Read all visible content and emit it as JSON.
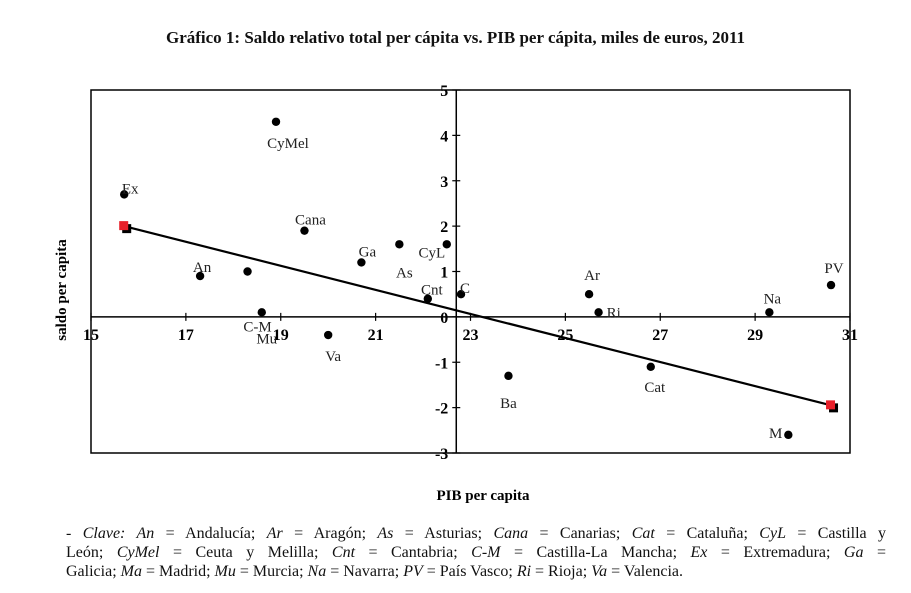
{
  "chart_data": {
    "type": "scatter",
    "title": "Gráfico 1: Saldo relativo total per cápita vs. PIB per cápita, miles de euros, 2011",
    "xlabel": "PIB per capita",
    "ylabel": "saldo per capita",
    "xlim": [
      15,
      31
    ],
    "ylim": [
      -3,
      5
    ],
    "xticks": [
      15,
      17,
      19,
      21,
      23,
      25,
      27,
      29,
      31
    ],
    "yticks": [
      5,
      4,
      3,
      2,
      1,
      0,
      -1,
      -2,
      -3
    ],
    "axes_cross": {
      "x": 22.7,
      "y": 0
    },
    "points": [
      {
        "label": "CyMel",
        "x": 18.9,
        "y": 4.3
      },
      {
        "label": "Ex",
        "x": 15.7,
        "y": 2.7
      },
      {
        "label": "Cana",
        "x": 19.5,
        "y": 1.9
      },
      {
        "label": "Ga",
        "x": 20.7,
        "y": 1.2
      },
      {
        "label": "As",
        "x": 21.5,
        "y": 1.6
      },
      {
        "label": "CyL",
        "x": 22.5,
        "y": 1.6
      },
      {
        "label": "An",
        "x": 17.3,
        "y": 0.9
      },
      {
        "label": "C-M",
        "x": 18.3,
        "y": 1.0
      },
      {
        "label": "Mu",
        "x": 18.6,
        "y": 0.1
      },
      {
        "label": "Cnt",
        "x": 22.1,
        "y": 0.4
      },
      {
        "label": "C",
        "x": 22.8,
        "y": 0.5
      },
      {
        "label": "Va",
        "x": 20.0,
        "y": -0.4
      },
      {
        "label": "Ar",
        "x": 25.5,
        "y": 0.5
      },
      {
        "label": "Ri",
        "x": 25.7,
        "y": 0.1
      },
      {
        "label": "Na",
        "x": 29.3,
        "y": 0.1
      },
      {
        "label": "PV",
        "x": 30.6,
        "y": 0.7
      },
      {
        "label": "Ba",
        "x": 23.8,
        "y": -1.3
      },
      {
        "label": "Cat",
        "x": 26.8,
        "y": -1.1
      },
      {
        "label": "M",
        "x": 29.7,
        "y": -2.6
      }
    ],
    "trendline": {
      "x": [
        15.7,
        30.6
      ],
      "y": [
        2.0,
        -1.95
      ],
      "color": "#000000",
      "endpoint_color": "#e8202a"
    }
  },
  "legend_lines": [
    [
      {
        "t": "- "
      },
      {
        "t": "Clave: An",
        "i": true
      },
      {
        "t": " = Andalucía; "
      },
      {
        "t": "Ar",
        "i": true
      },
      {
        "t": " = Aragón; "
      },
      {
        "t": "As",
        "i": true
      },
      {
        "t": " = Asturias; "
      },
      {
        "t": "Cana",
        "i": true
      },
      {
        "t": " = Canarias; "
      },
      {
        "t": "Cat",
        "i": true
      },
      {
        "t": " = Cataluña; "
      },
      {
        "t": "CyL",
        "i": true
      },
      {
        "t": " = Castilla y"
      }
    ],
    [
      {
        "t": "León; "
      },
      {
        "t": "CyMel",
        "i": true
      },
      {
        "t": " = Ceuta y Melilla; "
      },
      {
        "t": "Cnt",
        "i": true
      },
      {
        "t": " = Cantabria; "
      },
      {
        "t": "C-M",
        "i": true
      },
      {
        "t": " = Castilla-La Mancha; "
      },
      {
        "t": "Ex",
        "i": true
      },
      {
        "t": " = Extremadura; "
      },
      {
        "t": "Ga",
        "i": true
      },
      {
        "t": " ="
      }
    ],
    [
      {
        "t": "Galicia; "
      },
      {
        "t": "Ma",
        "i": true
      },
      {
        "t": " = Madrid; "
      },
      {
        "t": "Mu",
        "i": true
      },
      {
        "t": " = Murcia; "
      },
      {
        "t": "Na",
        "i": true
      },
      {
        "t": " = Navarra; "
      },
      {
        "t": "PV",
        "i": true
      },
      {
        "t": " = País Vasco; "
      },
      {
        "t": "Ri",
        "i": true
      },
      {
        "t": " = Rioja; "
      },
      {
        "t": "Va",
        "i": true
      },
      {
        "t": " = Valencia."
      }
    ]
  ]
}
